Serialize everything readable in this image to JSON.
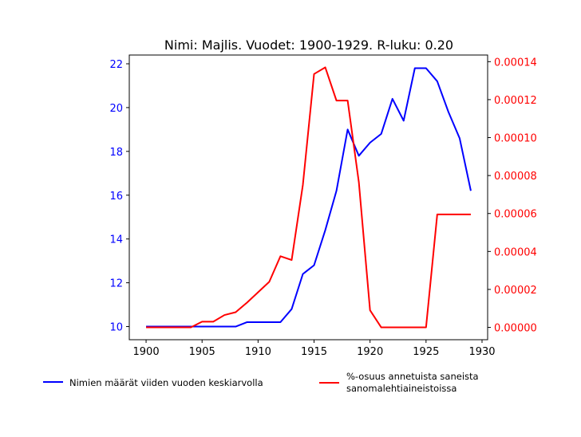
{
  "chart_data": {
    "type": "line",
    "title": "Nimi: Majlis. Vuodet: 1900-1929. R-luku: 0.20",
    "xlabel": "",
    "ylabel": "",
    "y2label": "",
    "xlim": [
      1898.5,
      1930.5
    ],
    "ylim": [
      9.4,
      22.4
    ],
    "y2lim": [
      -6.5e-06,
      0.0001435
    ],
    "x_ticks": [
      1900,
      1905,
      1910,
      1915,
      1920,
      1925,
      1930
    ],
    "y_ticks": [
      10,
      12,
      14,
      16,
      18,
      20,
      22
    ],
    "y2_ticks": [
      0,
      2e-05,
      4e-05,
      6e-05,
      8e-05,
      0.0001,
      0.00012,
      0.00014
    ],
    "y2_tick_labels": [
      "0.00000",
      "0.00002",
      "0.00004",
      "0.00006",
      "0.00008",
      "0.00010",
      "0.00012",
      "0.00014"
    ],
    "grid": false,
    "legend_position": "bottom",
    "colors": {
      "left_axis": "#0000ff",
      "right_axis": "#ff0000",
      "series1": "#0000ff",
      "series2": "#ff0000"
    },
    "x": [
      1900,
      1901,
      1902,
      1903,
      1904,
      1905,
      1906,
      1907,
      1908,
      1909,
      1910,
      1911,
      1912,
      1913,
      1914,
      1915,
      1916,
      1917,
      1918,
      1919,
      1920,
      1921,
      1922,
      1923,
      1924,
      1925,
      1926,
      1927,
      1928,
      1929
    ],
    "series": [
      {
        "name": "Nimien määrät viiden vuoden keskiarvolla",
        "axis": "left",
        "values": [
          10,
          10,
          10,
          10,
          10,
          10,
          10,
          10,
          10,
          10.2,
          10.2,
          10.2,
          10.2,
          10.8,
          12.4,
          12.8,
          14.4,
          16.2,
          19,
          17.8,
          18.4,
          18.8,
          20.4,
          19.4,
          21.8,
          21.8,
          21.2,
          19.8,
          18.6,
          16.2
        ]
      },
      {
        "name": "%-osuus annetuista saneista\n sanomalehtiaineistoissa",
        "axis": "right",
        "values": [
          0,
          0,
          0,
          0,
          0,
          3e-06,
          3e-06,
          6.5e-06,
          8e-06,
          1.3e-05,
          1.85e-05,
          2.4e-05,
          3.75e-05,
          3.55e-05,
          7.5e-05,
          0.0001335,
          0.000137,
          0.0001195,
          0.0001195,
          7.65e-05,
          9e-06,
          0,
          0,
          0,
          0,
          0,
          5.95e-05,
          5.95e-05,
          5.95e-05,
          5.95e-05
        ]
      }
    ]
  }
}
